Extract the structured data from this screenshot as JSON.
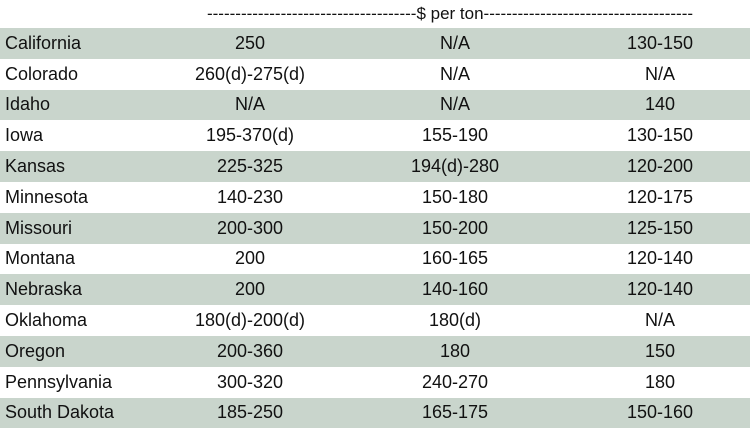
{
  "header": {
    "unit_label": "-------------------------------------$ per ton-------------------------------------"
  },
  "table": {
    "rows": [
      {
        "state": "California",
        "c1": "250",
        "c2": "N/A",
        "c3": "130-150"
      },
      {
        "state": "Colorado",
        "c1": "260(d)-275(d)",
        "c2": "N/A",
        "c3": "N/A"
      },
      {
        "state": "Idaho",
        "c1": "N/A",
        "c2": "N/A",
        "c3": "140"
      },
      {
        "state": "Iowa",
        "c1": "195-370(d)",
        "c2": "155-190",
        "c3": "130-150"
      },
      {
        "state": "Kansas",
        "c1": "225-325",
        "c2": "194(d)-280",
        "c3": "120-200"
      },
      {
        "state": "Minnesota",
        "c1": "140-230",
        "c2": "150-180",
        "c3": "120-175"
      },
      {
        "state": "Missouri",
        "c1": "200-300",
        "c2": "150-200",
        "c3": "125-150"
      },
      {
        "state": "Montana",
        "c1": "200",
        "c2": "160-165",
        "c3": "120-140"
      },
      {
        "state": "Nebraska",
        "c1": "200",
        "c2": "140-160",
        "c3": "120-140"
      },
      {
        "state": "Oklahoma",
        "c1": "180(d)-200(d)",
        "c2": "180(d)",
        "c3": "N/A"
      },
      {
        "state": "Oregon",
        "c1": "200-360",
        "c2": "180",
        "c3": "150"
      },
      {
        "state": "Pennsylvania",
        "c1": "300-320",
        "c2": "240-270",
        "c3": "180"
      },
      {
        "state": "South Dakota",
        "c1": "185-250",
        "c2": "165-175",
        "c3": "150-160"
      }
    ]
  }
}
